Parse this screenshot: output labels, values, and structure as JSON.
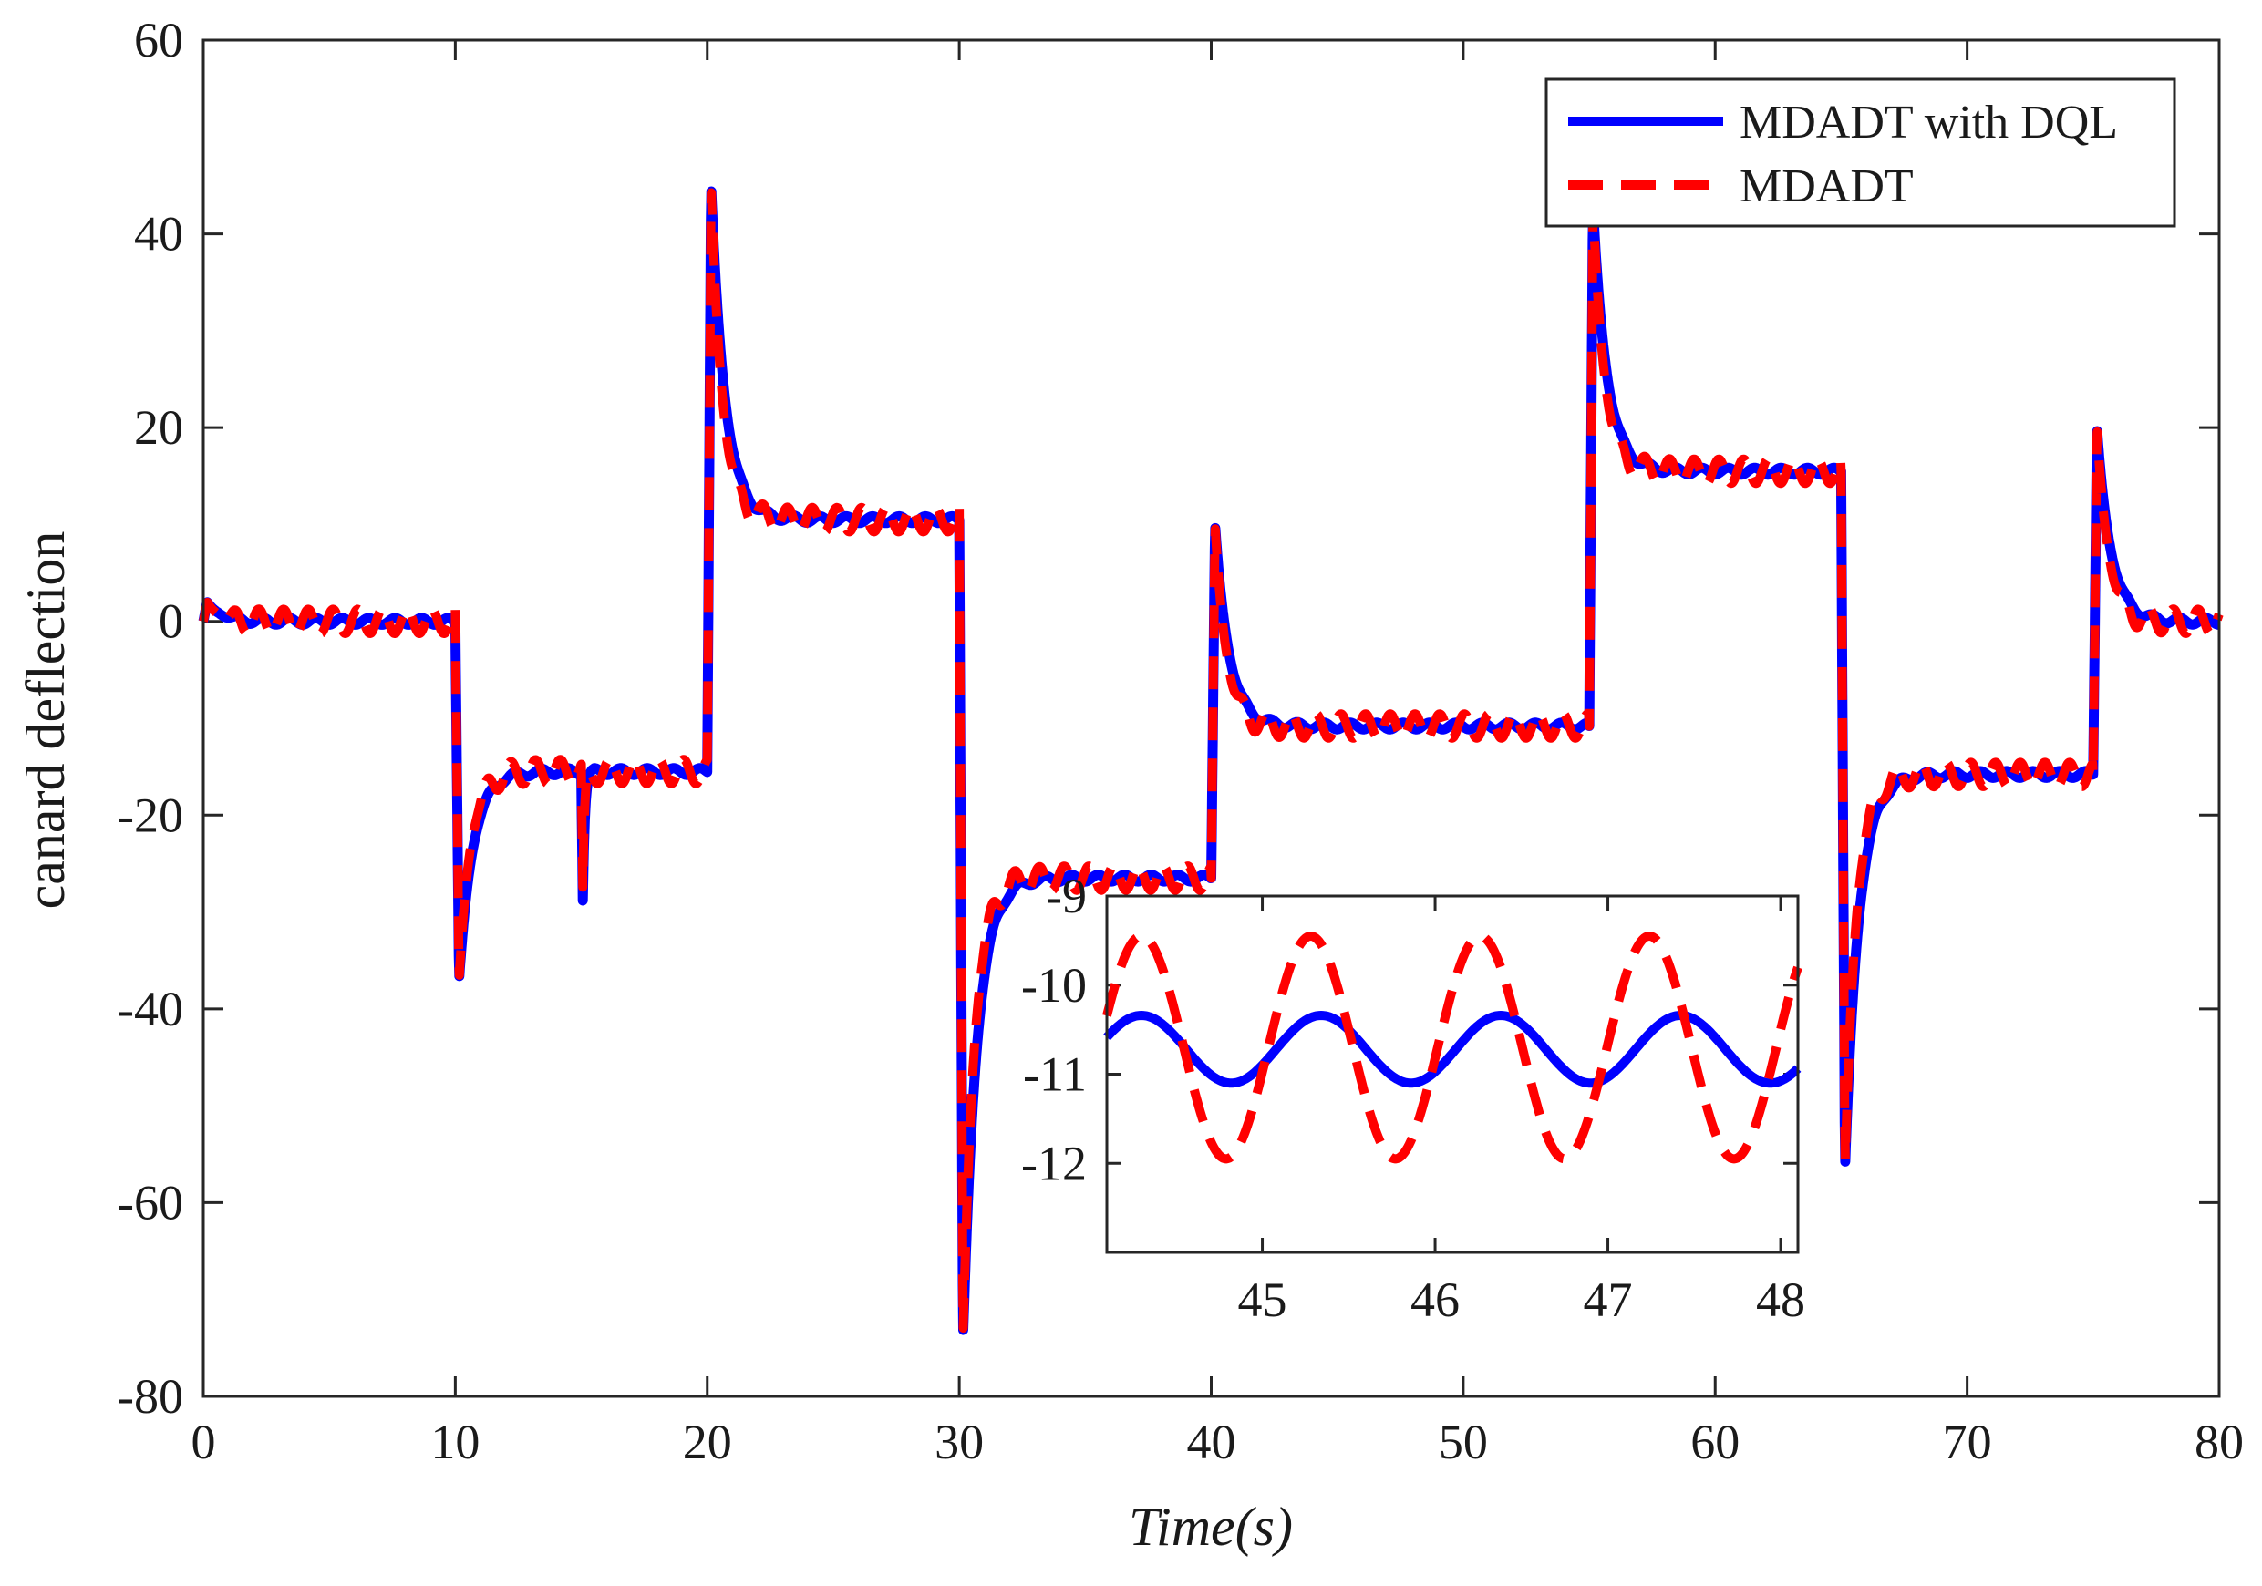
{
  "chart_data": [
    {
      "id": "main",
      "type": "line",
      "title": "",
      "xlabel": "Time(s)",
      "ylabel": "canard deflection",
      "xlim": [
        0,
        80
      ],
      "ylim": [
        -80,
        60
      ],
      "xticks": [
        0,
        10,
        20,
        30,
        40,
        50,
        60,
        70,
        80
      ],
      "yticks": [
        -80,
        -60,
        -40,
        -20,
        0,
        20,
        40,
        60
      ],
      "legend": {
        "location": "top-right",
        "entries": [
          "MDADT with DQL",
          "MDADT"
        ]
      },
      "grid": false,
      "segments": [
        {
          "t_start": 0,
          "t_end": 10,
          "before": 0,
          "peak": 2,
          "settle": 0
        },
        {
          "t_start": 10,
          "t_end": 20,
          "before": 0,
          "peak": -37,
          "settle": -15.5,
          "disturbance": {
            "t": 15,
            "peak": -28.5
          }
        },
        {
          "t_start": 20,
          "t_end": 30,
          "before": -15.5,
          "peak": 45,
          "settle": 10.5
        },
        {
          "t_start": 30,
          "t_end": 40,
          "before": 10.5,
          "peak": -74,
          "settle": -26.5
        },
        {
          "t_start": 40,
          "t_end": 55,
          "before": -26.5,
          "peak": 10,
          "settle": -10.8
        },
        {
          "t_start": 55,
          "t_end": 65,
          "before": -10.8,
          "peak": 43,
          "settle": 15.5
        },
        {
          "t_start": 65,
          "t_end": 75,
          "before": 15.5,
          "peak": -56.5,
          "settle": -15.8
        },
        {
          "t_start": 75,
          "t_end": 80,
          "before": -15.8,
          "peak": 20,
          "settle": 0
        }
      ],
      "series": [
        {
          "name": "MDADT with DQL",
          "color": "#0000ff",
          "style": "solid",
          "oscillation_amplitude": 0.35,
          "oscillation_period": 1.05
        },
        {
          "name": "MDADT",
          "color": "#ff0000",
          "style": "dashed",
          "oscillation_amplitude": 1.25,
          "oscillation_period": 0.98
        }
      ]
    },
    {
      "id": "inset",
      "type": "line",
      "title": "",
      "xlabel": "",
      "ylabel": "",
      "xlim": [
        44.1,
        48.1
      ],
      "ylim": [
        -13,
        -9
      ],
      "xticks": [
        45,
        46,
        47,
        48
      ],
      "yticks": [
        -12,
        -11,
        -10,
        -9
      ],
      "grid": false,
      "series": [
        {
          "name": "MDADT with DQL",
          "color": "#0000ff",
          "style": "solid",
          "center": -10.72,
          "amplitude": 0.38,
          "period": 1.04,
          "first_peak_t": 44.3
        },
        {
          "name": "MDADT",
          "color": "#ff0000",
          "style": "dashed",
          "center": -10.7,
          "amplitude": 1.25,
          "period": 0.98,
          "first_peak_t": 44.3
        }
      ]
    }
  ]
}
